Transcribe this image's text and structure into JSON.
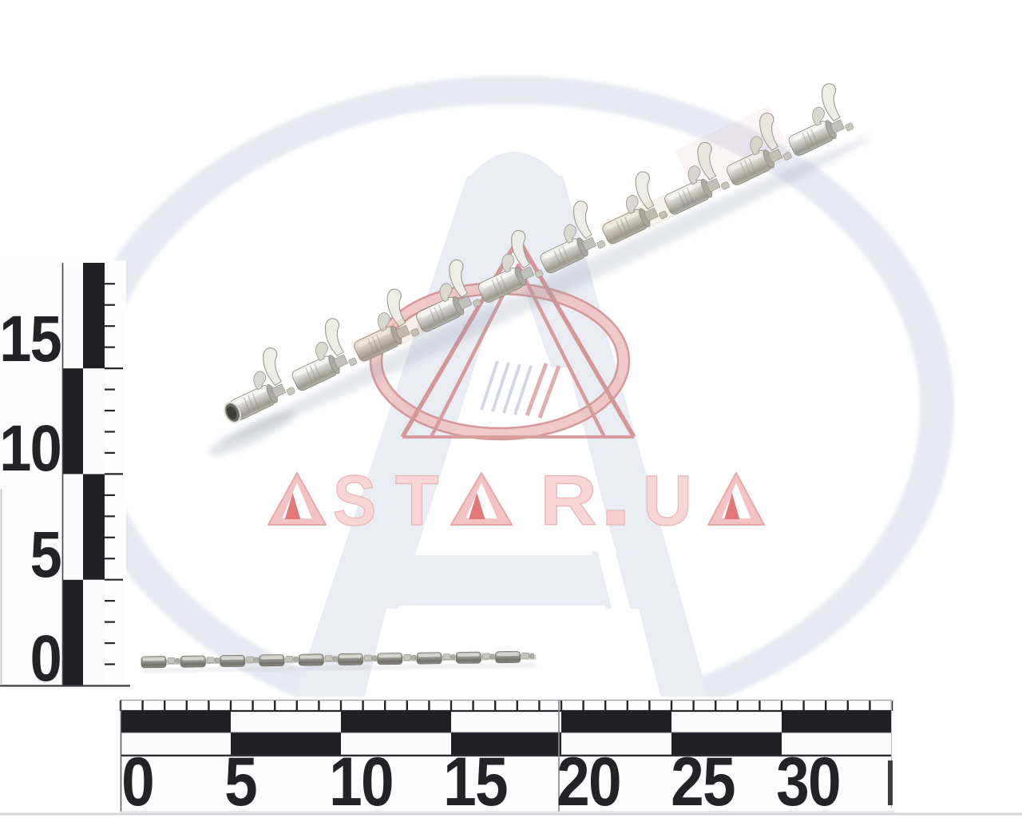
{
  "brand": {
    "watermark_text": "ASTAR.UA"
  },
  "colors": {
    "watermark_red": "#d98c8c",
    "watermark_grey": "#e9ecf3",
    "ruler_black": "#202024",
    "metal_grey": "#bdbdb5"
  },
  "vertical_ruler": {
    "labels": [
      "15",
      "10",
      "5",
      "0"
    ]
  },
  "horizontal_ruler": {
    "labels": [
      "0",
      "5",
      "10",
      "15",
      "20",
      "25",
      "30"
    ]
  }
}
